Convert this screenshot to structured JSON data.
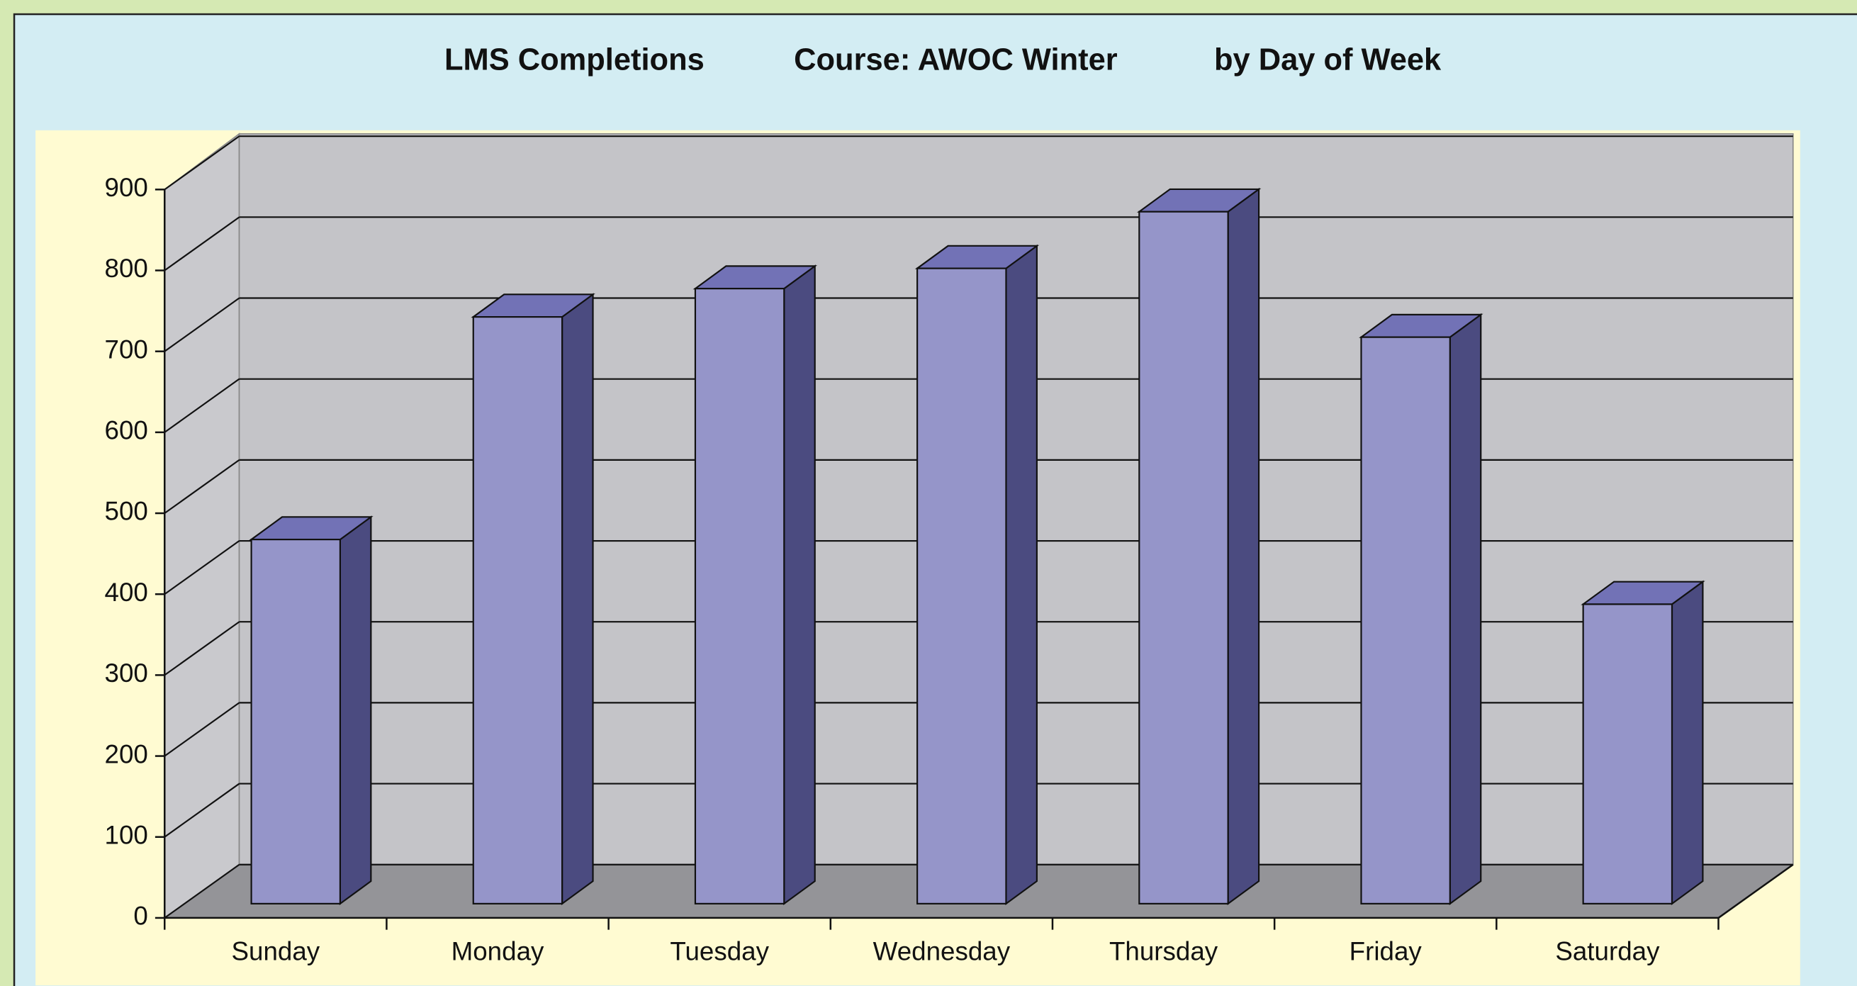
{
  "chart_data": {
    "type": "bar3d",
    "title": [
      "LMS Completions",
      "Course: AWOC Winter",
      "by Day of Week"
    ],
    "categories": [
      "Sunday",
      "Monday",
      "Tuesday",
      "Wednesday",
      "Thursday",
      "Friday",
      "Saturday"
    ],
    "values": [
      450,
      725,
      760,
      785,
      855,
      700,
      370
    ],
    "color": "#9595c9",
    "ylim": [
      0,
      900
    ],
    "yticks": [
      0,
      100,
      200,
      300,
      400,
      500,
      600,
      700,
      800,
      900
    ],
    "grid": true
  }
}
